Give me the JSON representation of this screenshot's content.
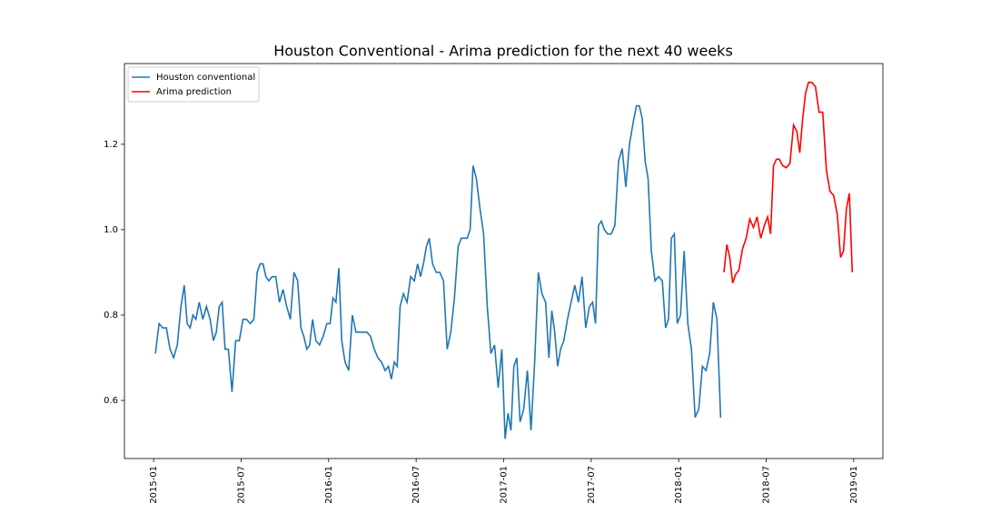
{
  "chart_data": {
    "type": "line",
    "title": "Houston Conventional - Arima prediction for the next 40 weeks",
    "xlim": [
      "2014-11",
      "2019-03"
    ],
    "xticks": [
      "2015-01",
      "2015-07",
      "2016-01",
      "2016-07",
      "2017-01",
      "2017-07",
      "2018-01",
      "2018-07",
      "2019-01"
    ],
    "ylim": [
      0.464,
      1.389
    ],
    "yticks": [
      0.6,
      0.8,
      {
        "value": 1,
        "label": "1.0"
      },
      1.2
    ],
    "legend": "upper left",
    "series": [
      {
        "name": "Houston conventional",
        "color": "#1f77b4",
        "x": [
          "2015-01",
          "2015-01",
          "2015-01",
          "2015-01",
          "2015-02",
          "2015-02",
          "2015-02",
          "2015-02",
          "2015-03",
          "2015-03",
          "2015-03",
          "2015-03",
          "2015-03",
          "2015-04",
          "2015-04",
          "2015-04",
          "2015-04",
          "2015-05",
          "2015-05",
          "2015-05",
          "2015-05",
          "2015-05",
          "2015-06",
          "2015-06",
          "2015-06",
          "2015-06",
          "2015-07",
          "2015-07",
          "2015-07",
          "2015-07",
          "2015-08",
          "2015-08",
          "2015-08",
          "2015-08",
          "2015-08",
          "2015-09",
          "2015-09",
          "2015-09",
          "2015-09",
          "2015-10",
          "2015-10",
          "2015-10",
          "2015-10",
          "2015-11",
          "2015-11",
          "2015-11",
          "2015-11",
          "2015-11",
          "2015-12",
          "2015-12",
          "2015-12",
          "2015-12",
          "2016-01",
          "2016-01",
          "2016-01",
          "2016-01",
          "2016-01",
          "2016-02",
          "2016-02",
          "2016-02",
          "2016-02",
          "2016-03",
          "2016-03",
          "2016-03",
          "2016-03",
          "2016-04",
          "2016-04",
          "2016-04",
          "2016-04",
          "2016-05",
          "2016-05",
          "2016-05",
          "2016-05",
          "2016-05",
          "2016-06",
          "2016-06",
          "2016-06",
          "2016-06",
          "2016-07",
          "2016-07",
          "2016-07",
          "2016-07",
          "2016-07",
          "2016-08",
          "2016-08",
          "2016-08",
          "2016-08",
          "2016-09",
          "2016-09",
          "2016-09",
          "2016-09",
          "2016-10",
          "2016-10",
          "2016-10",
          "2016-10",
          "2016-10",
          "2016-11",
          "2016-11",
          "2016-11",
          "2016-11",
          "2016-12",
          "2016-12",
          "2016-12",
          "2016-12",
          "2017-01",
          "2017-01",
          "2017-01",
          "2017-01",
          "2017-01",
          "2017-02",
          "2017-02",
          "2017-02",
          "2017-02",
          "2017-03",
          "2017-03",
          "2017-03",
          "2017-03",
          "2017-04",
          "2017-04",
          "2017-04",
          "2017-04",
          "2017-04",
          "2017-05",
          "2017-05",
          "2017-05",
          "2017-05",
          "2017-06",
          "2017-06",
          "2017-06",
          "2017-06",
          "2017-07",
          "2017-07",
          "2017-07",
          "2017-07",
          "2017-07",
          "2017-08",
          "2017-08",
          "2017-08",
          "2017-08",
          "2017-09",
          "2017-09",
          "2017-09",
          "2017-09",
          "2017-10",
          "2017-10",
          "2017-10",
          "2017-10",
          "2017-10",
          "2017-11",
          "2017-11",
          "2017-11",
          "2017-11",
          "2017-12",
          "2017-12",
          "2017-12",
          "2017-12",
          "2017-12",
          "2018-01",
          "2018-01",
          "2018-01",
          "2018-01",
          "2018-02",
          "2018-02",
          "2018-02",
          "2018-02",
          "2018-03",
          "2018-03",
          "2018-03",
          "2018-03"
        ],
        "values": [
          0.71,
          0.78,
          0.77,
          0.77,
          0.72,
          0.7,
          0.73,
          0.82,
          0.87,
          0.78,
          0.77,
          0.8,
          0.79,
          0.83,
          0.79,
          0.82,
          0.79,
          0.74,
          0.76,
          0.82,
          0.83,
          0.72,
          0.72,
          0.62,
          0.74,
          0.74,
          0.79,
          0.79,
          0.78,
          0.79,
          0.9,
          0.92,
          0.92,
          0.89,
          0.88,
          0.89,
          0.89,
          0.83,
          0.86,
          0.82,
          0.79,
          0.9,
          0.88,
          0.77,
          0.75,
          0.72,
          0.73,
          0.79,
          0.74,
          0.73,
          0.75,
          0.78,
          0.78,
          0.84,
          0.83,
          0.91,
          0.74,
          0.69,
          0.67,
          0.8,
          0.76,
          0.76,
          0.76,
          0.76,
          0.75,
          0.72,
          0.7,
          0.69,
          0.67,
          0.68,
          0.65,
          0.69,
          0.68,
          0.82,
          0.85,
          0.83,
          0.89,
          0.88,
          0.92,
          0.89,
          0.92,
          0.96,
          0.98,
          0.92,
          0.9,
          0.9,
          0.88,
          0.72,
          0.76,
          0.84,
          0.96,
          0.98,
          0.98,
          0.98,
          1.0,
          1.15,
          1.12,
          1.05,
          0.99,
          0.82,
          0.71,
          0.73,
          0.63,
          0.72,
          0.51,
          0.57,
          0.53,
          0.68,
          0.7,
          0.55,
          0.58,
          0.67,
          0.53,
          0.69,
          0.9,
          0.85,
          0.83,
          0.7,
          0.81,
          0.76,
          0.68,
          0.72,
          0.74,
          0.79,
          0.83,
          0.87,
          0.83,
          0.89,
          0.77,
          0.82,
          0.83,
          0.78,
          1.01,
          1.02,
          1.0,
          0.99,
          0.99,
          1.01,
          1.16,
          1.19,
          1.1,
          1.2,
          1.25,
          1.29,
          1.29,
          1.26,
          1.16,
          1.12,
          0.95,
          0.88,
          0.89,
          0.88,
          0.77,
          0.79,
          0.98,
          0.99,
          0.78,
          0.8,
          0.95,
          0.78,
          0.72,
          0.56,
          0.58,
          0.68,
          0.67,
          0.71,
          0.83,
          0.79,
          0.56
        ]
      },
      {
        "name": "Arima prediction",
        "color": "#ff0000",
        "x": [
          "2018-04",
          "2018-04",
          "2018-04",
          "2018-04",
          "2018-04",
          "2018-05",
          "2018-05",
          "2018-05",
          "2018-05",
          "2018-06",
          "2018-06",
          "2018-06",
          "2018-06",
          "2018-07",
          "2018-07",
          "2018-07",
          "2018-07",
          "2018-07",
          "2018-08",
          "2018-08",
          "2018-08",
          "2018-08",
          "2018-09",
          "2018-09",
          "2018-09",
          "2018-09",
          "2018-09",
          "2018-10",
          "2018-10",
          "2018-10",
          "2018-10",
          "2018-11",
          "2018-11",
          "2018-11",
          "2018-11",
          "2018-12",
          "2018-12",
          "2018-12",
          "2018-12",
          "2018-12"
        ],
        "values": [
          0.9,
          0.965,
          0.935,
          0.875,
          0.895,
          0.905,
          0.955,
          0.98,
          1.025,
          1.005,
          1.03,
          0.98,
          1.01,
          1.03,
          0.99,
          1.15,
          1.165,
          1.165,
          1.15,
          1.145,
          1.155,
          1.245,
          1.23,
          1.18,
          1.26,
          1.32,
          1.345,
          1.345,
          1.335,
          1.275,
          1.275,
          1.14,
          1.09,
          1.08,
          1.035,
          0.935,
          0.95,
          1.05,
          1.085,
          0.9
        ]
      }
    ]
  }
}
